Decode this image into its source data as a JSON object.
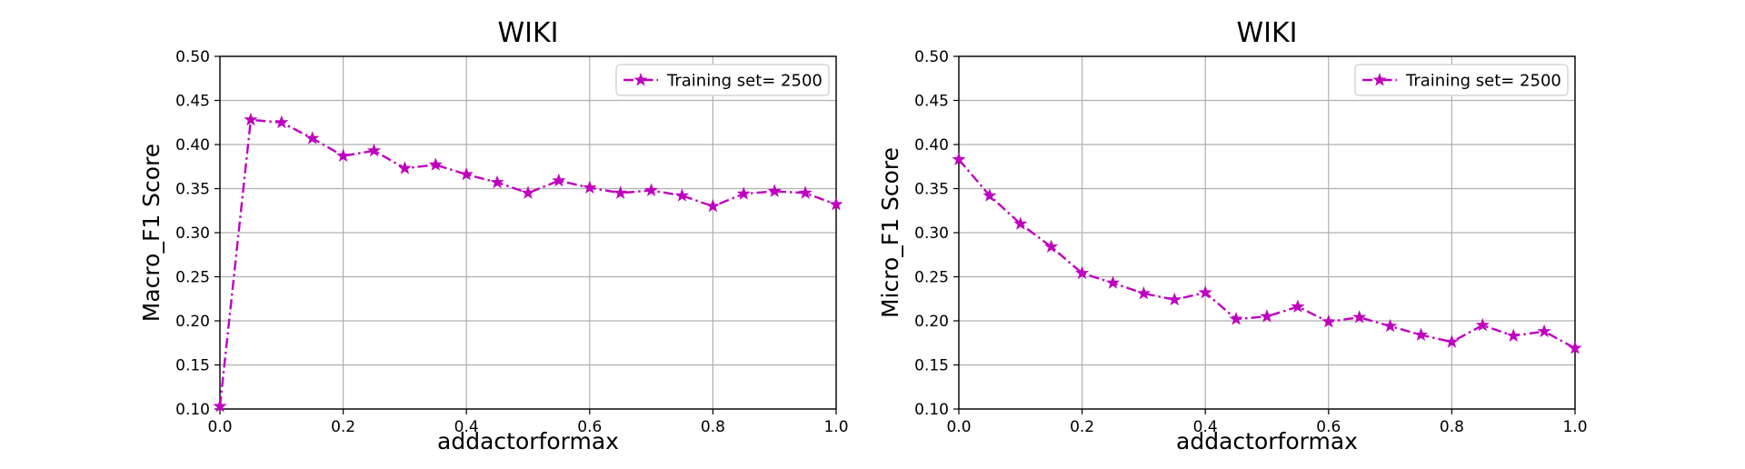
{
  "chart_data": [
    {
      "type": "line",
      "title": "WIKI",
      "xlabel": "addactorformax",
      "ylabel": "Macro_F1 Score",
      "xlim": [
        0.0,
        1.0
      ],
      "ylim": [
        0.1,
        0.5
      ],
      "xticks": [
        "0.0",
        "0.2",
        "0.4",
        "0.6",
        "0.8",
        "1.0"
      ],
      "yticks": [
        "0.10",
        "0.15",
        "0.20",
        "0.25",
        "0.30",
        "0.35",
        "0.40",
        "0.45",
        "0.50"
      ],
      "grid": true,
      "legend_position": "top-right",
      "series": [
        {
          "name": "Training set= 2500",
          "color": "#bf00bf",
          "line_style": "dash-dot",
          "marker": "star",
          "x": [
            0.0,
            0.05,
            0.1,
            0.15,
            0.2,
            0.25,
            0.3,
            0.35,
            0.4,
            0.45,
            0.5,
            0.55,
            0.6,
            0.65,
            0.7,
            0.75,
            0.8,
            0.85,
            0.9,
            0.95,
            1.0
          ],
          "y": [
            0.103,
            0.428,
            0.425,
            0.407,
            0.387,
            0.393,
            0.373,
            0.377,
            0.366,
            0.357,
            0.345,
            0.359,
            0.351,
            0.345,
            0.348,
            0.342,
            0.33,
            0.344,
            0.347,
            0.345,
            0.332
          ]
        }
      ]
    },
    {
      "type": "line",
      "title": "WIKI",
      "xlabel": "addactorformax",
      "ylabel": "Micro_F1 Score",
      "xlim": [
        0.0,
        1.0
      ],
      "ylim": [
        0.1,
        0.5
      ],
      "xticks": [
        "0.0",
        "0.2",
        "0.4",
        "0.6",
        "0.8",
        "1.0"
      ],
      "yticks": [
        "0.10",
        "0.15",
        "0.20",
        "0.25",
        "0.30",
        "0.35",
        "0.40",
        "0.45",
        "0.50"
      ],
      "grid": true,
      "legend_position": "top-right",
      "series": [
        {
          "name": "Training set= 2500",
          "color": "#bf00bf",
          "line_style": "dash-dot",
          "marker": "star",
          "x": [
            0.0,
            0.05,
            0.1,
            0.15,
            0.2,
            0.25,
            0.3,
            0.35,
            0.4,
            0.45,
            0.5,
            0.55,
            0.6,
            0.65,
            0.7,
            0.75,
            0.8,
            0.85,
            0.9,
            0.95,
            1.0
          ],
          "y": [
            0.383,
            0.342,
            0.31,
            0.284,
            0.254,
            0.243,
            0.231,
            0.224,
            0.232,
            0.202,
            0.205,
            0.216,
            0.199,
            0.204,
            0.194,
            0.184,
            0.176,
            0.195,
            0.183,
            0.188,
            0.169
          ]
        }
      ]
    }
  ]
}
